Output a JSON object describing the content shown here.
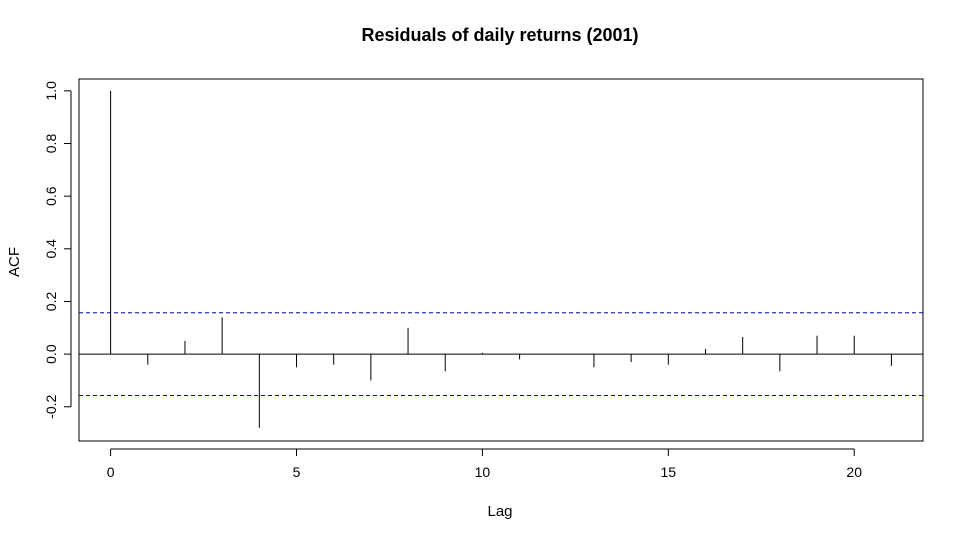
{
  "chart_data": {
    "type": "bar",
    "title": "Residuals of daily returns (2001)",
    "xlabel": "Lag",
    "ylabel": "ACF",
    "xlim": [
      -0.85,
      21.85
    ],
    "ylim": [
      -0.33,
      1.045
    ],
    "x_ticks": [
      0,
      5,
      10,
      15,
      20
    ],
    "x_tick_labels": [
      "0",
      "5",
      "10",
      "15",
      "20"
    ],
    "y_ticks": [
      -0.2,
      0.0,
      0.2,
      0.4,
      0.6,
      0.8,
      1.0
    ],
    "y_tick_labels": [
      "-0.2",
      "0.0",
      "0.2",
      "0.4",
      "0.6",
      "0.8",
      "1.0"
    ],
    "lags": [
      0,
      1,
      2,
      3,
      4,
      5,
      6,
      7,
      8,
      9,
      10,
      11,
      12,
      13,
      14,
      15,
      16,
      17,
      18,
      19,
      20,
      21
    ],
    "acf": [
      1.0,
      -0.04,
      0.05,
      0.14,
      -0.28,
      -0.05,
      -0.04,
      -0.1,
      0.1,
      -0.065,
      0.005,
      -0.02,
      0.0,
      -0.05,
      -0.03,
      -0.04,
      0.02,
      0.065,
      -0.065,
      0.07,
      0.07,
      -0.045
    ],
    "confidence_bounds": [
      0.157,
      -0.157
    ],
    "bound_color": "#0000cc",
    "grid": false
  }
}
